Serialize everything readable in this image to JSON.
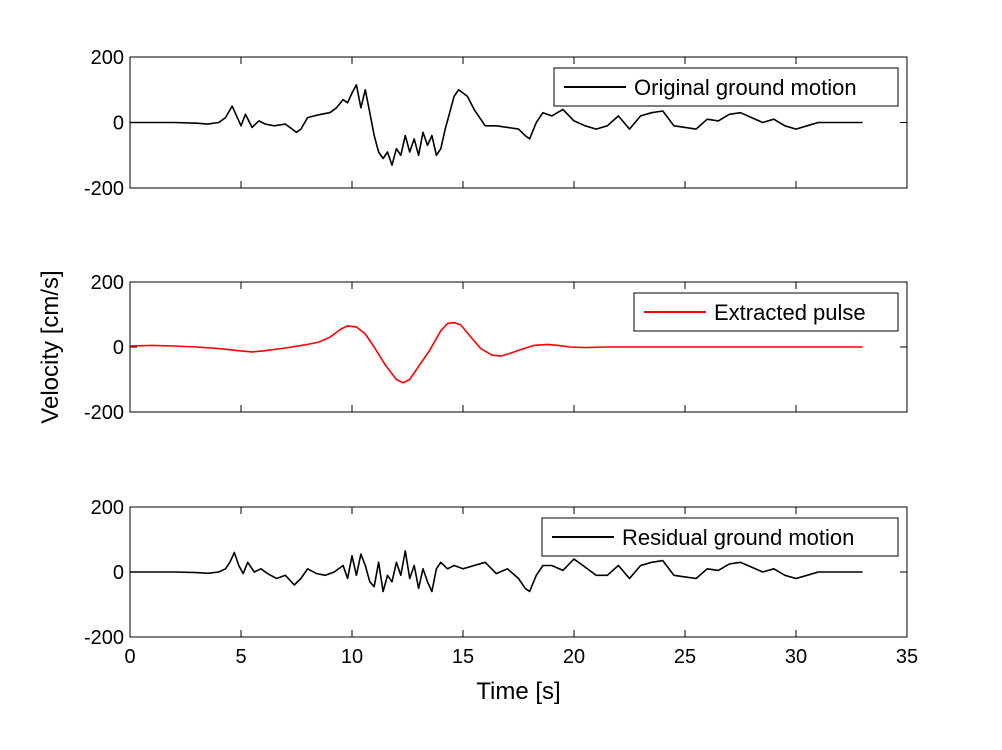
{
  "chart_data": [
    {
      "type": "line",
      "id": "original",
      "ylabel": "",
      "xlabel": "",
      "xlim": [
        0,
        35
      ],
      "ylim": [
        -200,
        200
      ],
      "yticks": [
        "-200",
        "0",
        "200"
      ],
      "xticks": [],
      "legend_position": "top-right",
      "series": [
        {
          "name": "Original ground motion",
          "color": "#000000",
          "x": [
            0,
            1,
            2,
            3,
            3.5,
            4,
            4.3,
            4.6,
            4.8,
            5.0,
            5.2,
            5.5,
            5.8,
            6.1,
            6.5,
            7.0,
            7.5,
            7.7,
            8.0,
            8.3,
            8.6,
            9.0,
            9.3,
            9.6,
            9.8,
            10.0,
            10.2,
            10.4,
            10.6,
            10.8,
            11.0,
            11.2,
            11.4,
            11.6,
            11.8,
            12.0,
            12.2,
            12.4,
            12.6,
            12.8,
            13.0,
            13.2,
            13.4,
            13.6,
            13.8,
            14.0,
            14.2,
            14.4,
            14.6,
            14.8,
            15.0,
            15.2,
            15.5,
            16.0,
            16.5,
            17.0,
            17.5,
            17.8,
            18.0,
            18.3,
            18.6,
            19.0,
            19.5,
            20.0,
            20.5,
            21.0,
            21.5,
            22.0,
            22.5,
            23.0,
            23.5,
            24.0,
            24.5,
            25.0,
            25.5,
            26.0,
            26.5,
            27.0,
            27.5,
            28.0,
            28.5,
            29.0,
            29.5,
            30.0,
            30.5,
            31.0,
            31.5,
            32.0,
            32.5,
            33.0
          ],
          "y": [
            0,
            0,
            0,
            -2,
            -5,
            0,
            15,
            50,
            20,
            -10,
            25,
            -15,
            5,
            -5,
            -10,
            -5,
            -30,
            -20,
            15,
            20,
            25,
            30,
            45,
            70,
            60,
            90,
            115,
            45,
            100,
            30,
            -40,
            -90,
            -110,
            -90,
            -130,
            -80,
            -100,
            -40,
            -90,
            -50,
            -100,
            -30,
            -70,
            -40,
            -100,
            -80,
            -20,
            30,
            80,
            100,
            90,
            80,
            40,
            -10,
            -10,
            -15,
            -20,
            -40,
            -50,
            0,
            30,
            20,
            40,
            5,
            -10,
            -20,
            -10,
            20,
            -20,
            20,
            30,
            35,
            -10,
            -15,
            -20,
            10,
            5,
            25,
            30,
            15,
            0,
            10,
            -10,
            -20,
            -10,
            0,
            0,
            0,
            0,
            0
          ]
        }
      ]
    },
    {
      "type": "line",
      "id": "pulse",
      "ylabel": "Velocity [cm/s]",
      "xlabel": "",
      "xlim": [
        0,
        35
      ],
      "ylim": [
        -200,
        200
      ],
      "yticks": [
        "-200",
        "0",
        "200"
      ],
      "xticks": [],
      "legend_position": "top-right",
      "series": [
        {
          "name": "Extracted pulse",
          "color": "#ff0000",
          "x": [
            0,
            1,
            2,
            3,
            4,
            5,
            5.5,
            6,
            7,
            8,
            8.5,
            9,
            9.5,
            9.8,
            10.2,
            10.6,
            11,
            11.5,
            12,
            12.3,
            12.6,
            13,
            13.5,
            14,
            14.3,
            14.6,
            14.9,
            15.3,
            15.8,
            16.3,
            16.7,
            17.1,
            17.6,
            18.2,
            18.8,
            19.3,
            19.8,
            20.5,
            21.5,
            23,
            25,
            27,
            29,
            31,
            33
          ],
          "y": [
            3,
            5,
            3,
            0,
            -5,
            -12,
            -15,
            -12,
            -3,
            8,
            15,
            30,
            55,
            65,
            62,
            40,
            0,
            -55,
            -100,
            -110,
            -100,
            -60,
            -10,
            50,
            72,
            75,
            68,
            35,
            -5,
            -25,
            -28,
            -20,
            -8,
            5,
            8,
            5,
            0,
            -2,
            0,
            0,
            0,
            0,
            0,
            0,
            0
          ]
        }
      ]
    },
    {
      "type": "line",
      "id": "residual",
      "ylabel": "",
      "xlabel": "Time [s]",
      "xlim": [
        0,
        35
      ],
      "ylim": [
        -200,
        200
      ],
      "yticks": [
        "-200",
        "0",
        "200"
      ],
      "xticks": [
        "0",
        "5",
        "10",
        "15",
        "20",
        "25",
        "30",
        "35"
      ],
      "legend_position": "top-right",
      "series": [
        {
          "name": "Residual ground motion",
          "color": "#000000",
          "x": [
            0,
            1,
            2,
            3,
            3.5,
            4,
            4.3,
            4.5,
            4.7,
            4.9,
            5.1,
            5.3,
            5.6,
            5.9,
            6.2,
            6.6,
            7.0,
            7.4,
            7.7,
            8.0,
            8.4,
            8.8,
            9.2,
            9.6,
            9.8,
            10.0,
            10.2,
            10.4,
            10.6,
            10.8,
            11.0,
            11.2,
            11.4,
            11.6,
            11.8,
            12.0,
            12.2,
            12.4,
            12.6,
            12.8,
            13.0,
            13.2,
            13.4,
            13.6,
            13.8,
            14.0,
            14.3,
            14.6,
            15.0,
            15.5,
            16.0,
            16.5,
            17.0,
            17.5,
            17.8,
            18.0,
            18.3,
            18.6,
            19.0,
            19.5,
            20.0,
            20.5,
            21.0,
            21.5,
            22.0,
            22.5,
            23.0,
            23.5,
            24.0,
            24.5,
            25.0,
            25.5,
            26.0,
            26.5,
            27.0,
            27.5,
            28.0,
            28.5,
            29.0,
            29.5,
            30.0,
            30.5,
            31.0,
            31.5,
            32.0,
            32.5,
            33.0
          ],
          "y": [
            0,
            0,
            0,
            -2,
            -4,
            0,
            10,
            30,
            60,
            20,
            -5,
            30,
            0,
            10,
            -5,
            -20,
            -10,
            -40,
            -20,
            10,
            -5,
            -10,
            0,
            20,
            -20,
            50,
            -10,
            55,
            20,
            -30,
            -45,
            30,
            -60,
            -10,
            -30,
            30,
            -10,
            65,
            -20,
            20,
            -50,
            10,
            -30,
            -60,
            10,
            30,
            10,
            20,
            10,
            20,
            30,
            -5,
            10,
            -20,
            -50,
            -60,
            -10,
            20,
            20,
            5,
            40,
            15,
            -10,
            -10,
            20,
            -20,
            20,
            30,
            35,
            -10,
            -15,
            -20,
            10,
            5,
            25,
            30,
            15,
            0,
            10,
            -10,
            -20,
            -10,
            0,
            0,
            0,
            0,
            0
          ]
        }
      ]
    }
  ]
}
